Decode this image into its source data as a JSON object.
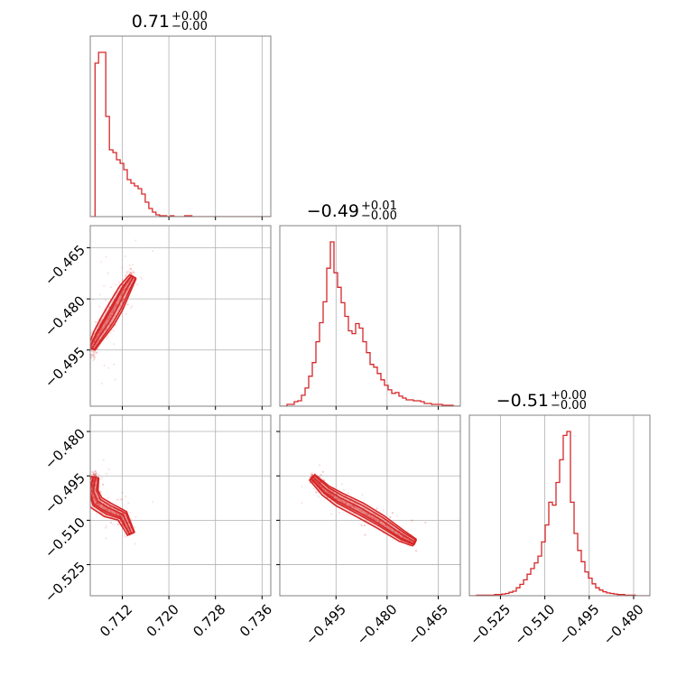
{
  "chart_data": {
    "type": "corner",
    "color": "#d62728",
    "grid": true,
    "params": [
      {
        "title": "0.71",
        "sup": "+0.00",
        "sub": "−0.00",
        "range": [
          0.7065,
          0.7375
        ],
        "ticks": [
          0.712,
          0.72,
          0.728,
          0.736
        ],
        "tick_labels": [
          "0.712",
          "0.720",
          "0.728",
          "0.736"
        ]
      },
      {
        "title": "−0.49",
        "sup": "+0.01",
        "sub": "−0.00",
        "range": [
          -0.5115,
          -0.4585
        ],
        "ticks": [
          -0.465,
          -0.48,
          -0.495
        ],
        "tick_labels": [
          "−0.465",
          "−0.480",
          "−0.495"
        ]
      },
      {
        "title": "−0.51",
        "sup": "+0.00",
        "sub": "−0.00",
        "range": [
          -0.5355,
          -0.4745
        ],
        "ticks": [
          -0.48,
          -0.495,
          -0.51,
          -0.525
        ],
        "tick_labels": [
          "−0.480",
          "−0.495",
          "−0.510",
          "−0.525"
        ]
      }
    ],
    "histograms": [
      {
        "param": 0,
        "bin_edges_start": 0.7067,
        "bin_width": 0.000616,
        "counts": [
          0,
          170,
          182,
          182,
          111,
          74,
          71,
          63,
          59,
          52,
          41,
          37,
          34,
          31,
          25,
          16,
          9,
          5,
          2,
          1,
          1,
          0,
          1,
          0,
          0,
          0,
          1,
          1,
          0,
          0,
          0,
          0,
          0,
          0,
          0,
          0,
          0,
          0,
          0,
          0,
          0,
          0,
          0,
          0,
          0,
          0,
          0,
          0,
          0,
          0
        ]
      },
      {
        "param": 1,
        "bin_edges_start": -0.5115,
        "bin_width": 0.00106,
        "counts": [
          0,
          0,
          2,
          2,
          5,
          6,
          12,
          20,
          33,
          48,
          71,
          92,
          115,
          152,
          181,
          147,
          131,
          114,
          99,
          83,
          80,
          91,
          86,
          71,
          59,
          46,
          43,
          36,
          29,
          23,
          18,
          14,
          15,
          11,
          9,
          7,
          7,
          6,
          6,
          5,
          3,
          3,
          2,
          2,
          2,
          1,
          1,
          1,
          0,
          0
        ]
      },
      {
        "param": 2,
        "bin_edges_start": -0.5355,
        "bin_width": 0.00122,
        "counts": [
          0,
          0,
          1,
          1,
          1,
          1,
          1,
          2,
          2,
          3,
          4,
          6,
          8,
          14,
          20,
          28,
          38,
          48,
          58,
          70,
          95,
          125,
          165,
          160,
          200,
          240,
          283,
          290,
          165,
          110,
          80,
          60,
          42,
          31,
          21,
          14,
          10,
          7,
          5,
          4,
          3,
          2,
          2,
          1,
          1,
          1,
          0,
          0,
          0,
          0
        ]
      }
    ],
    "pairs": [
      {
        "x": 0,
        "y": 1,
        "ridge": [
          [
            0.7067,
            -0.4945
          ],
          [
            0.708,
            -0.4905
          ],
          [
            0.7095,
            -0.4865
          ],
          [
            0.711,
            -0.482
          ],
          [
            0.7125,
            -0.477
          ],
          [
            0.7138,
            -0.4735
          ]
        ],
        "scatter_spread": [
          0.0009,
          0.0038
        ]
      },
      {
        "x": 0,
        "y": 2,
        "ridge": [
          [
            0.7073,
            -0.4955
          ],
          [
            0.7068,
            -0.5
          ],
          [
            0.7075,
            -0.504
          ],
          [
            0.7095,
            -0.5065
          ],
          [
            0.712,
            -0.5085
          ],
          [
            0.7135,
            -0.5145
          ]
        ],
        "scatter_spread": [
          0.001,
          0.003
        ]
      },
      {
        "x": 1,
        "y": 2,
        "ridge": [
          [
            -0.502,
            -0.4955
          ],
          [
            -0.498,
            -0.5
          ],
          [
            -0.494,
            -0.503
          ],
          [
            -0.488,
            -0.5065
          ],
          [
            -0.482,
            -0.5105
          ],
          [
            -0.4755,
            -0.5155
          ],
          [
            -0.472,
            -0.5175
          ]
        ],
        "scatter_spread": [
          0.0012,
          0.0022
        ]
      }
    ]
  }
}
